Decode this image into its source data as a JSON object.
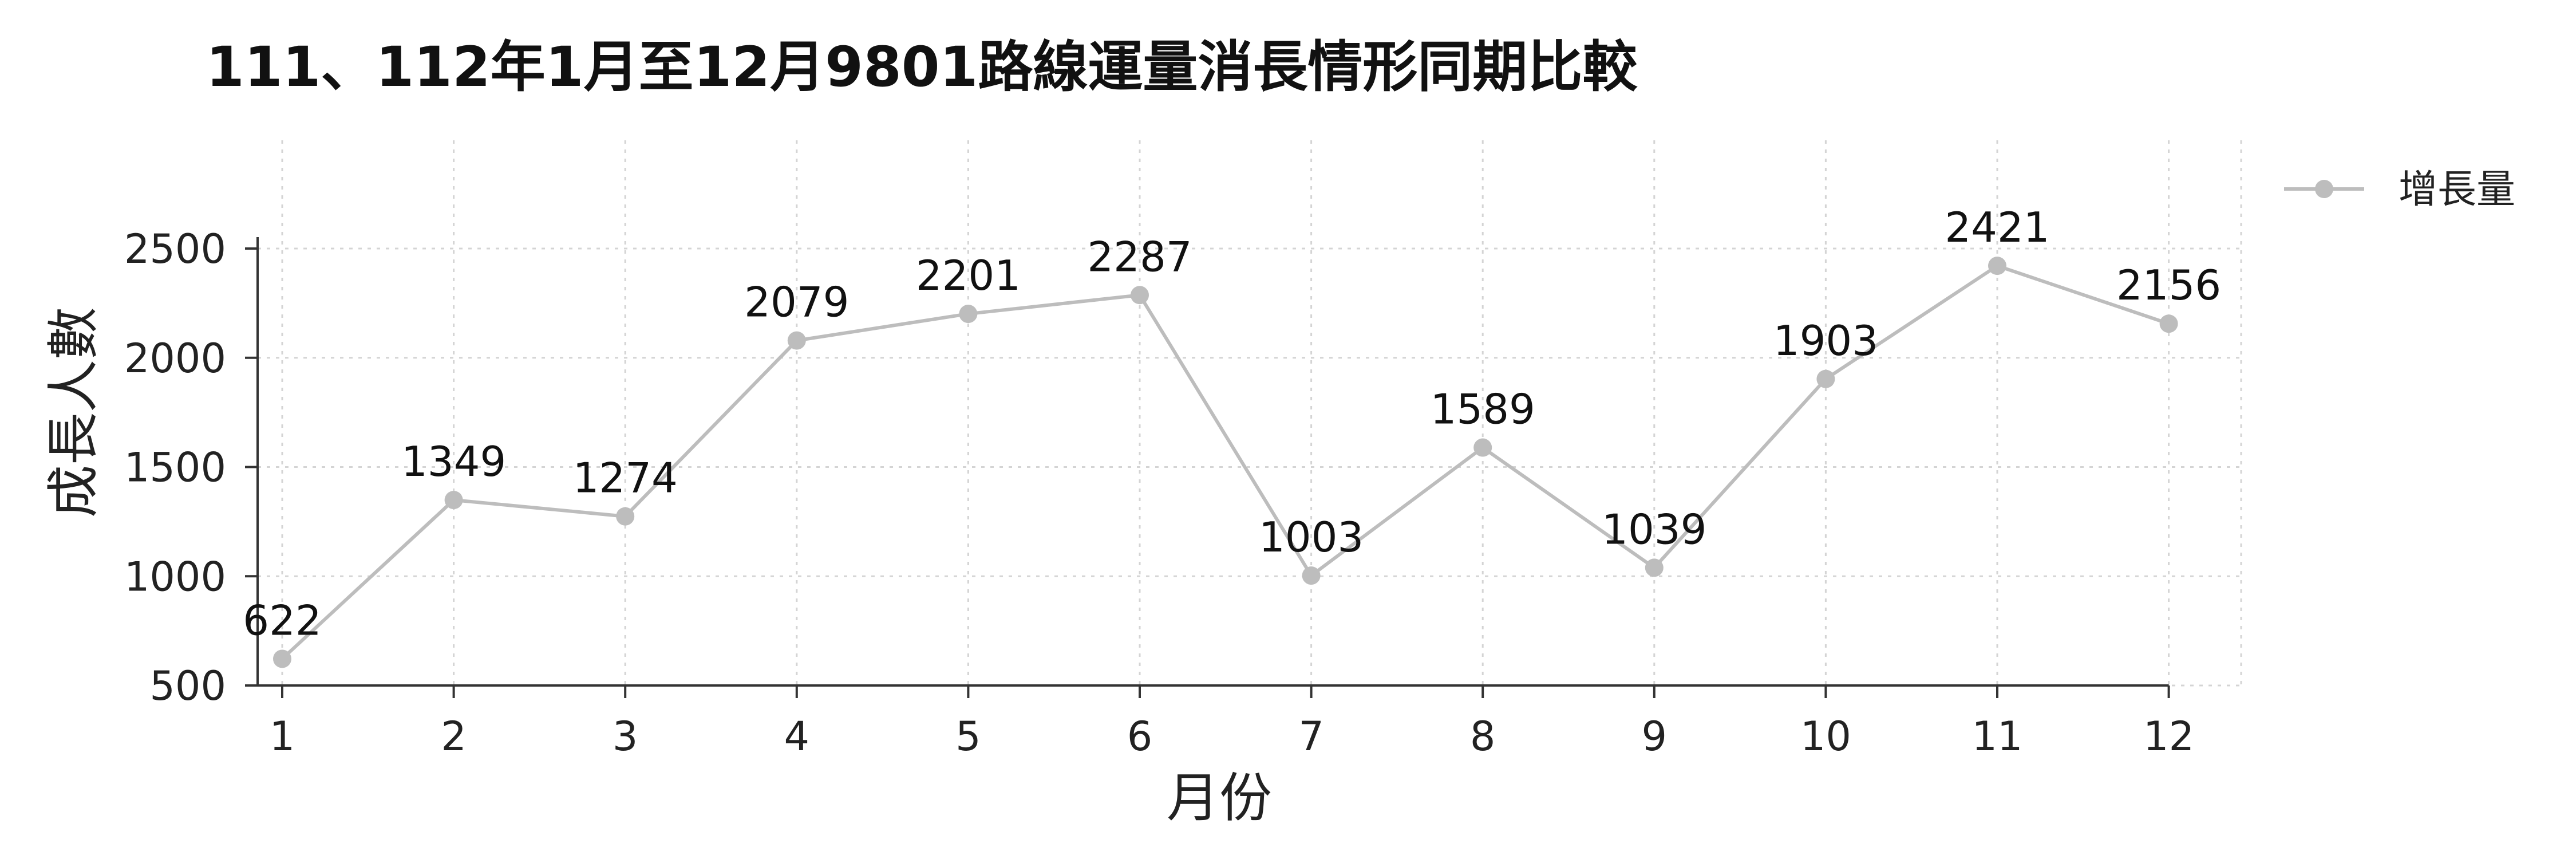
{
  "chart_data": {
    "type": "line",
    "title": "111、112年1月至12月9801路線運量消長情形同期比較",
    "xlabel": "月份",
    "ylabel": "成長人數",
    "categories": [
      "1",
      "2",
      "3",
      "4",
      "5",
      "6",
      "7",
      "8",
      "9",
      "10",
      "11",
      "12"
    ],
    "yticks": [
      500,
      1000,
      1500,
      2000,
      2500
    ],
    "ylim": [
      500,
      2750
    ],
    "grid": true,
    "legend_position": "top-right",
    "series": [
      {
        "name": "增長量",
        "color": "#bdbdbd",
        "values": [
          622,
          1349,
          1274,
          2079,
          2201,
          2287,
          1003,
          1589,
          1039,
          1903,
          2421,
          2156
        ],
        "labels": [
          "622",
          "1349",
          "1274",
          "2079",
          "2201",
          "2287",
          "1003",
          "1589",
          "1039",
          "1903",
          "2421",
          "2156"
        ]
      }
    ]
  }
}
